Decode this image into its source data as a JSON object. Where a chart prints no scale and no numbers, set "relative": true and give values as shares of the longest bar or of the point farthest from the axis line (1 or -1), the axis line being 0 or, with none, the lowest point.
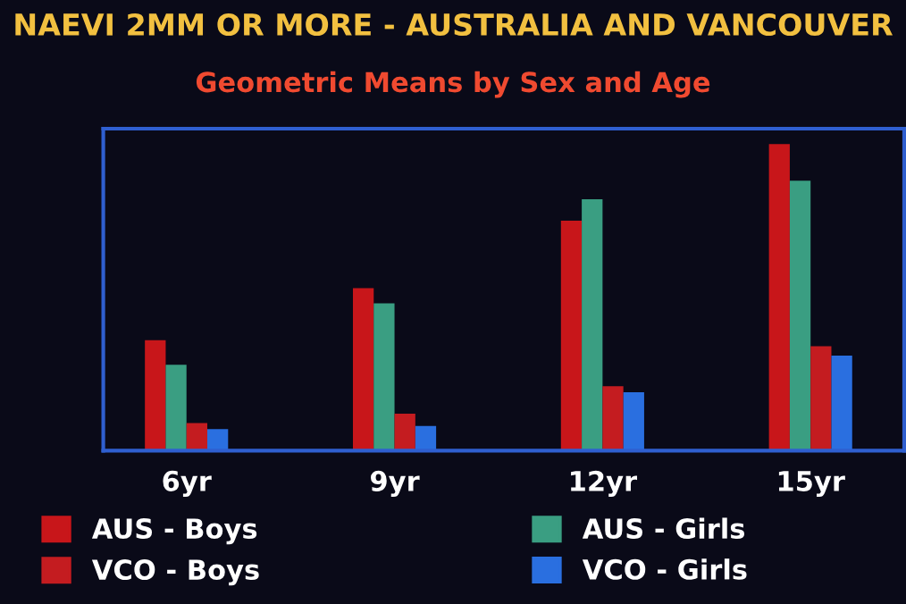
{
  "chart_data": {
    "type": "bar",
    "title": "NAEVI 2MM OR MORE - AUSTRALIA AND VANCOUVER",
    "subtitle": "Geometric Means by Sex and Age",
    "categories": [
      "6yr",
      "9yr",
      "12yr",
      "15yr"
    ],
    "relative": true,
    "legend": "bottom",
    "series": [
      {
        "name": "AUS - Boys",
        "color": "#c8161a",
        "values": [
          0.36,
          0.53,
          0.75,
          1
        ]
      },
      {
        "name": "AUS - Girls",
        "color": "#3a9e82",
        "values": [
          0.28,
          0.48,
          0.82,
          0.88
        ]
      },
      {
        "name": "VCO - Boys",
        "color": "#c41c20",
        "values": [
          0.09,
          0.12,
          0.21,
          0.34
        ]
      },
      {
        "name": "VCO - Girls",
        "color": "#2a6fe0",
        "values": [
          0.07,
          0.08,
          0.19,
          0.31
        ]
      }
    ]
  }
}
